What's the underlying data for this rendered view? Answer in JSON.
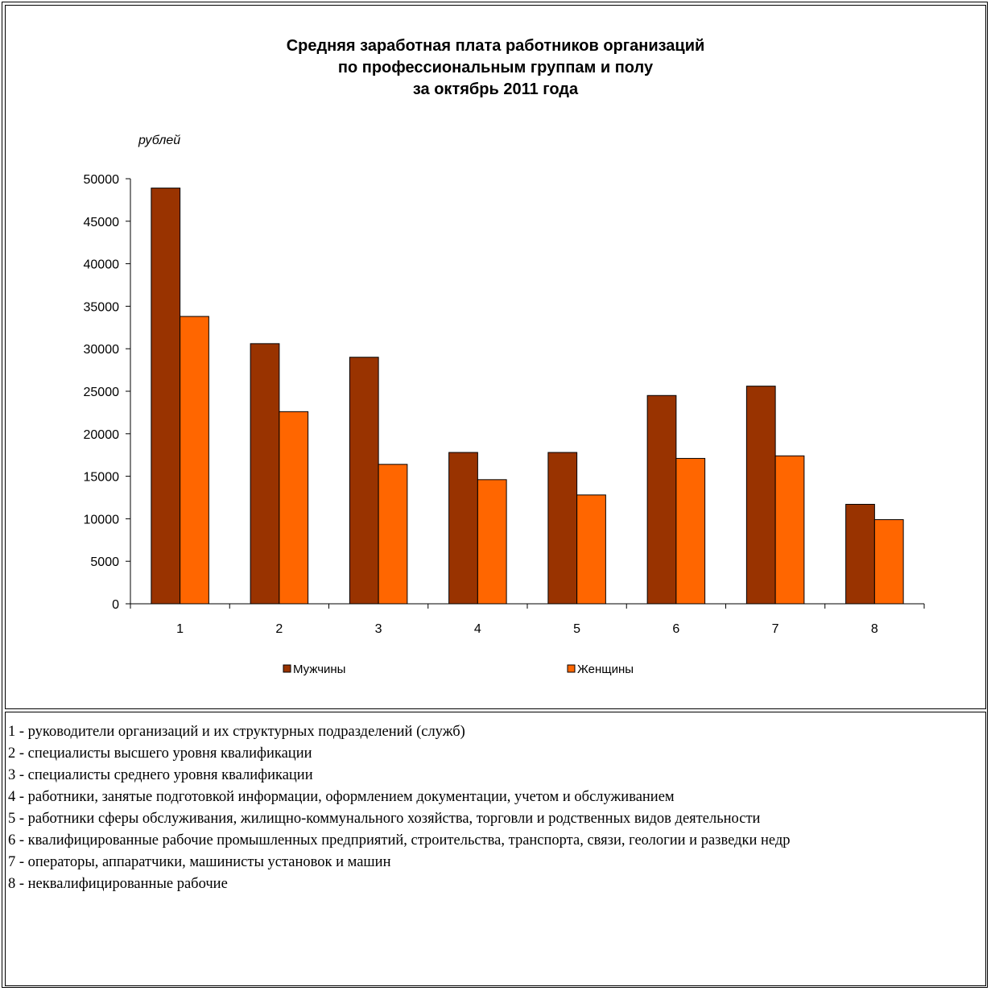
{
  "chart_data": {
    "type": "bar",
    "title": [
      "Средняя заработная плата работников организаций",
      "по профессиональным группам и полу",
      "за октябрь 2011 года"
    ],
    "ylabel": "рублей",
    "ylim": [
      0,
      50000
    ],
    "yticks": [
      0,
      5000,
      10000,
      15000,
      20000,
      25000,
      30000,
      35000,
      40000,
      45000,
      50000
    ],
    "categories": [
      "1",
      "2",
      "3",
      "4",
      "5",
      "6",
      "7",
      "8"
    ],
    "series": [
      {
        "name": "Мужчины",
        "color": "#993300",
        "values": [
          48900,
          30600,
          29000,
          17800,
          17800,
          24500,
          25600,
          11700
        ]
      },
      {
        "name": "Женщины",
        "color": "#FF6600",
        "values": [
          33800,
          22600,
          16400,
          14600,
          12800,
          17100,
          17400,
          9900
        ]
      }
    ],
    "legend_position": "bottom",
    "grid": false
  },
  "notes": [
    "1 - руководители организаций и их структурных подразделений (служб)",
    "2 - специалисты высшего уровня квалификации",
    "3 - специалисты среднего уровня квалификации",
    "4 - работники, занятые подготовкой информации, оформлением документации, учетом и обслуживанием",
    "5 - работники сферы обслуживания, жилищно-коммунального хозяйства, торговли и родственных видов деятельности",
    "6 - квалифицированные рабочие промышленных предприятий, строительства, транспорта, связи, геологии и разведки недр",
    "7 - операторы, аппаратчики, машинисты установок и машин",
    "8 - неквалифицированные рабочие"
  ]
}
